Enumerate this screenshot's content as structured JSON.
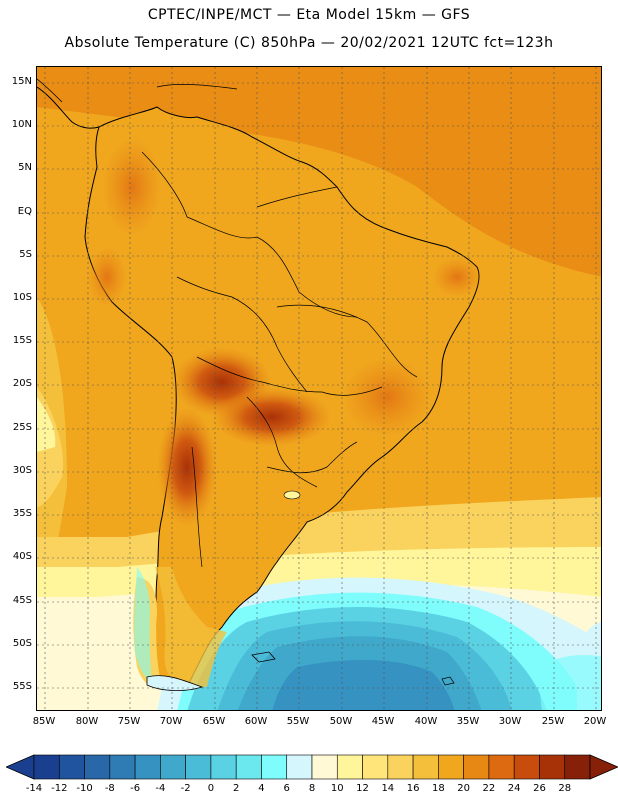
{
  "header": {
    "line1": "CPTEC/INPE/MCT —  Eta Model 15km — GFS",
    "line2": "Absolute Temperature (C) 850hPa — 20/02/2021 12UTC fct=123h"
  },
  "map": {
    "lat_labels": [
      "15N",
      "10N",
      "5N",
      "EQ",
      "5S",
      "10S",
      "15S",
      "20S",
      "25S",
      "30S",
      "35S",
      "40S",
      "45S",
      "50S",
      "55S"
    ],
    "lon_labels": [
      "85W",
      "80W",
      "75W",
      "70W",
      "65W",
      "60W",
      "55W",
      "50W",
      "45W",
      "40W",
      "35W",
      "30W",
      "25W",
      "20W"
    ],
    "colors": {
      "background": "#f5b000",
      "ocean_warm": "#f2b920",
      "coastline": "#000000",
      "gridline": "#555555"
    }
  },
  "legend": {
    "labels": [
      "-14",
      "-12",
      "-10",
      "-8",
      "-6",
      "-4",
      "-2",
      "0",
      "2",
      "4",
      "6",
      "8",
      "10",
      "12",
      "14",
      "16",
      "18",
      "20",
      "22",
      "24",
      "26",
      "28"
    ],
    "colors": [
      "#1b3f8f",
      "#21549f",
      "#2868a8",
      "#2f7cb4",
      "#3692c0",
      "#3fa8cb",
      "#4abcd8",
      "#5ad2e4",
      "#6ae8ee",
      "#7ffcfc",
      "#d4f6fc",
      "#fff9d6",
      "#fff59a",
      "#ffe57a",
      "#fad35e",
      "#f4bf3a",
      "#f0a71e",
      "#e88814",
      "#dd6a10",
      "#c84c0c",
      "#a83208",
      "#862008"
    ]
  }
}
